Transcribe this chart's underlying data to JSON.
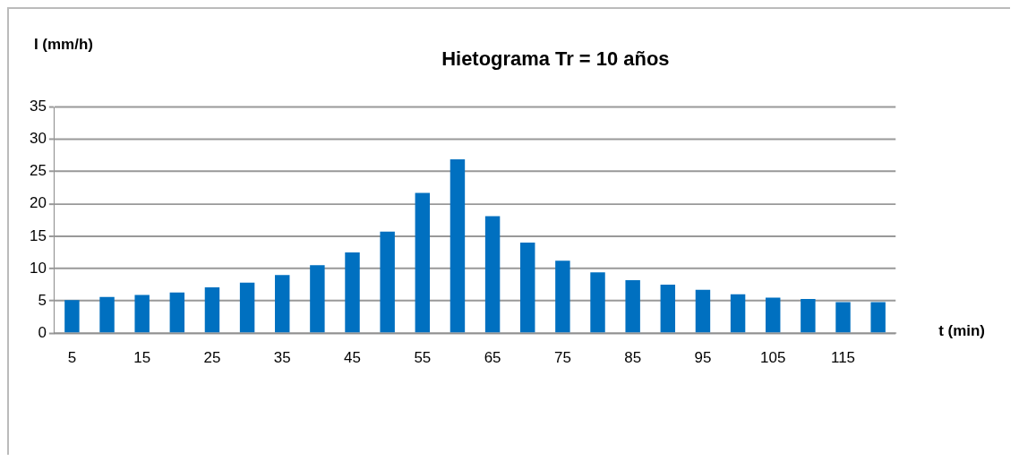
{
  "chart_data": {
    "type": "bar",
    "title": "Hietograma Tr = 10 años",
    "xlabel": "t (min)",
    "ylabel": "I (mm/h)",
    "categories": [
      "5",
      null,
      "15",
      null,
      "25",
      null,
      "35",
      null,
      "45",
      null,
      "55",
      null,
      "65",
      null,
      "75",
      null,
      "85",
      null,
      "95",
      null,
      "105",
      null,
      "115",
      null
    ],
    "values": [
      5.1,
      5.6,
      5.9,
      6.3,
      7.1,
      7.8,
      9.0,
      10.5,
      12.5,
      15.7,
      21.7,
      26.9,
      18.1,
      14.0,
      11.2,
      9.4,
      8.2,
      7.5,
      6.7,
      6.0,
      5.5,
      5.3,
      4.8,
      4.8
    ],
    "color": "#0070c0",
    "ylim": [
      0,
      35
    ],
    "yticks": [
      0,
      5,
      10,
      15,
      20,
      25,
      30,
      35
    ],
    "grid": "y",
    "legend": false
  }
}
